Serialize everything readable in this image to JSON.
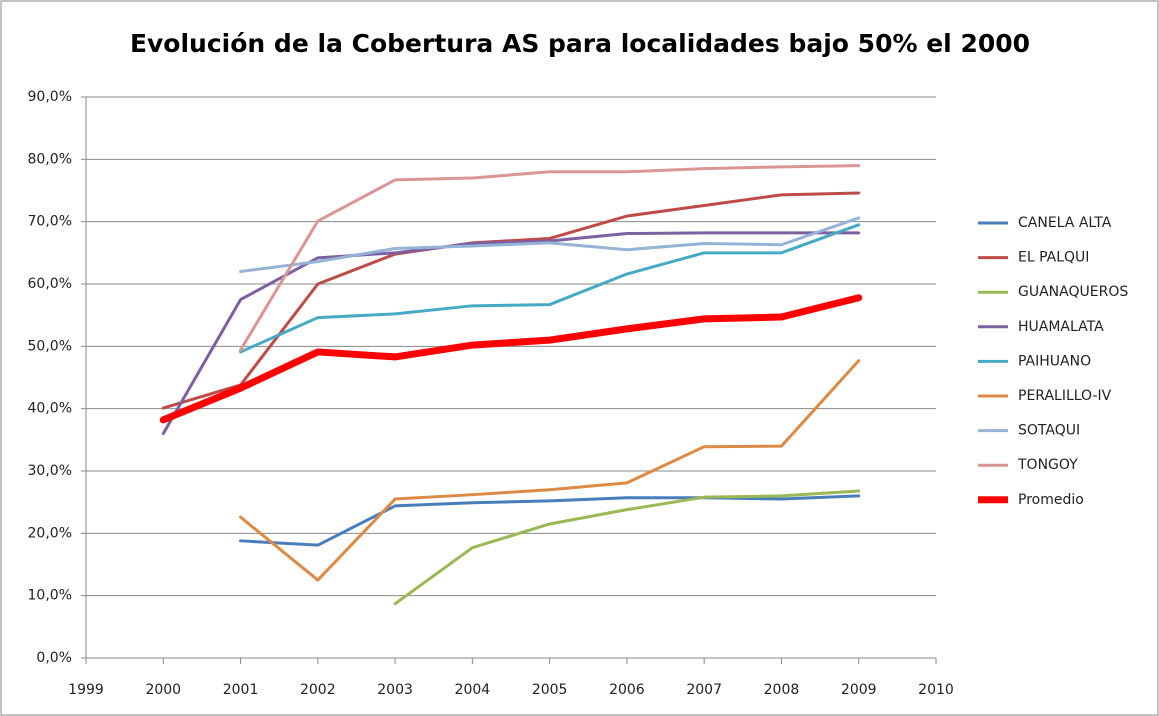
{
  "chart_data": {
    "type": "line",
    "title": "Evolución de la Cobertura AS para localidades bajo 50% el 2000",
    "x": [
      2000,
      2001,
      2002,
      2003,
      2004,
      2005,
      2006,
      2007,
      2008,
      2009
    ],
    "xlim": [
      1999,
      2010
    ],
    "xticks": [
      1999,
      2000,
      2001,
      2002,
      2003,
      2004,
      2005,
      2006,
      2007,
      2008,
      2009,
      2010
    ],
    "ylim": [
      0,
      90
    ],
    "yticks": [
      {
        "value": 0,
        "label": "0,0%"
      },
      {
        "value": 10,
        "label": "10,0%"
      },
      {
        "value": 20,
        "label": "20,0%"
      },
      {
        "value": 30,
        "label": "30,0%"
      },
      {
        "value": 40,
        "label": "40,0%"
      },
      {
        "value": 50,
        "label": "50,0%"
      },
      {
        "value": 60,
        "label": "60,0%"
      },
      {
        "value": 70,
        "label": "70,0%"
      },
      {
        "value": 80,
        "label": "80,0%"
      },
      {
        "value": 90,
        "label": "90,0%"
      }
    ],
    "grid": true,
    "legend": "right",
    "series": [
      {
        "name": "CANELA ALTA",
        "color": "#4a7ebb",
        "line_width": 3,
        "values": [
          null,
          18.8,
          18.1,
          24.4,
          24.9,
          25.2,
          25.7,
          25.7,
          25.5,
          26.0
        ]
      },
      {
        "name": "EL PALQUI",
        "color": "#be4b48",
        "line_width": 3,
        "values": [
          40.1,
          43.8,
          60.0,
          64.8,
          66.6,
          67.3,
          70.9,
          72.6,
          74.3,
          74.6
        ]
      },
      {
        "name": "GUANAQUEROS",
        "color": "#98b954",
        "line_width": 3,
        "values": [
          null,
          null,
          null,
          8.7,
          17.7,
          21.5,
          23.8,
          25.8,
          26.0,
          26.8
        ]
      },
      {
        "name": "HUAMALATA",
        "color": "#7d60a0",
        "line_width": 3,
        "values": [
          36.0,
          57.5,
          64.2,
          65.0,
          66.5,
          66.9,
          68.1,
          68.2,
          68.2,
          68.2
        ]
      },
      {
        "name": "PAIHUANO",
        "color": "#46aac5",
        "line_width": 3,
        "values": [
          null,
          49.1,
          54.6,
          55.2,
          56.5,
          56.7,
          61.6,
          65.0,
          65.0,
          69.5
        ]
      },
      {
        "name": "PERALILLO-IV",
        "color": "#dd8a45",
        "line_width": 3,
        "values": [
          null,
          22.6,
          12.5,
          25.5,
          26.2,
          27.0,
          28.1,
          33.9,
          34.0,
          47.7
        ]
      },
      {
        "name": "SOTAQUI",
        "color": "#95b3d7",
        "line_width": 3,
        "values": [
          null,
          62.0,
          63.6,
          65.7,
          66.1,
          66.6,
          65.5,
          66.5,
          66.3,
          70.6
        ]
      },
      {
        "name": "TONGOY",
        "color": "#d99694",
        "line_width": 3,
        "values": [
          null,
          49.4,
          70.1,
          76.7,
          77.0,
          78.0,
          78.0,
          78.5,
          78.8,
          79.0
        ]
      },
      {
        "name": "Promedio",
        "color": "#ff0000",
        "line_width": 7,
        "values": [
          38.2,
          43.3,
          49.1,
          48.3,
          50.2,
          51.0,
          52.8,
          54.4,
          54.7,
          57.8
        ]
      }
    ]
  }
}
